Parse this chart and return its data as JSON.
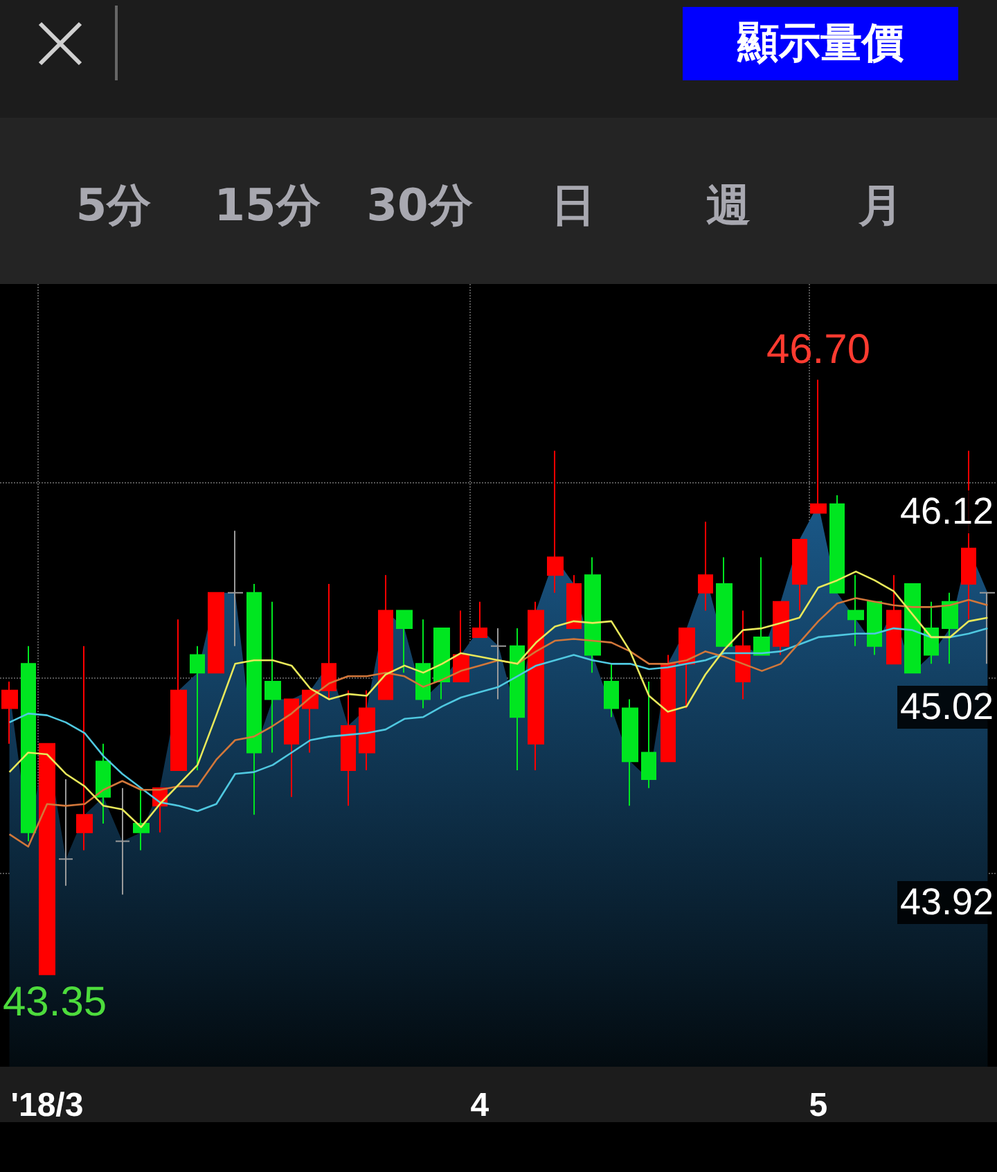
{
  "chart_data": {
    "type": "candlestick",
    "categories": [
      null,
      null,
      "'18/3",
      null,
      null,
      null,
      null,
      null,
      null,
      null,
      null,
      null,
      null,
      null,
      null,
      null,
      null,
      null,
      null,
      null,
      null,
      null,
      null,
      null,
      null,
      "4",
      null,
      null,
      null,
      null,
      null,
      null,
      null,
      null,
      null,
      null,
      null,
      null,
      null,
      null,
      null,
      null,
      null,
      "5",
      null,
      null,
      null,
      null,
      null,
      null,
      null,
      null,
      null
    ],
    "ohlc": [
      [
        44.85,
        45.0,
        44.65,
        44.95
      ],
      [
        45.1,
        45.2,
        44.1,
        44.15
      ],
      [
        43.35,
        44.65,
        43.35,
        44.65
      ],
      [
        44.0,
        44.45,
        43.85,
        44.0
      ],
      [
        44.15,
        45.2,
        44.05,
        44.25
      ],
      [
        44.55,
        44.65,
        44.2,
        44.35
      ],
      [
        44.1,
        44.4,
        43.8,
        44.1
      ],
      [
        44.2,
        44.4,
        44.05,
        44.15
      ],
      [
        44.3,
        44.4,
        44.15,
        44.4
      ],
      [
        44.5,
        45.35,
        44.5,
        44.95
      ],
      [
        45.15,
        45.2,
        44.5,
        45.05
      ],
      [
        45.05,
        45.5,
        45.05,
        45.5
      ],
      [
        45.5,
        45.85,
        45.2,
        45.5
      ],
      [
        45.5,
        45.55,
        44.25,
        44.6
      ],
      [
        45.0,
        45.45,
        44.6,
        44.9
      ],
      [
        44.65,
        44.9,
        44.35,
        44.9
      ],
      [
        44.85,
        44.95,
        44.6,
        44.95
      ],
      [
        44.95,
        45.55,
        44.9,
        45.1
      ],
      [
        44.5,
        44.95,
        44.3,
        44.75
      ],
      [
        44.6,
        44.95,
        44.5,
        44.85
      ],
      [
        44.9,
        45.6,
        44.9,
        45.4
      ],
      [
        45.4,
        45.4,
        45.05,
        45.3
      ],
      [
        45.1,
        45.35,
        44.85,
        44.9
      ],
      [
        45.3,
        45.3,
        44.9,
        45.0
      ],
      [
        45.0,
        45.4,
        45.0,
        45.15
      ],
      [
        45.25,
        45.45,
        45.25,
        45.3
      ],
      [
        45.2,
        45.3,
        44.9,
        45.2
      ],
      [
        45.2,
        45.3,
        44.5,
        44.8
      ],
      [
        44.65,
        45.45,
        44.5,
        45.4
      ],
      [
        45.6,
        46.3,
        45.5,
        45.7
      ],
      [
        45.3,
        45.6,
        45.3,
        45.55
      ],
      [
        45.6,
        45.7,
        45.05,
        45.15
      ],
      [
        45.0,
        45.1,
        44.8,
        44.85
      ],
      [
        44.85,
        44.9,
        44.3,
        44.55
      ],
      [
        44.6,
        45.0,
        44.4,
        44.45
      ],
      [
        44.55,
        45.15,
        44.55,
        45.1
      ],
      [
        45.1,
        45.3,
        44.85,
        45.3
      ],
      [
        45.5,
        45.9,
        45.4,
        45.6
      ],
      [
        45.55,
        45.7,
        45.2,
        45.2
      ],
      [
        45.0,
        45.4,
        44.9,
        45.2
      ],
      [
        45.25,
        45.7,
        45.15,
        45.15
      ],
      [
        45.2,
        45.45,
        45.15,
        45.45
      ],
      [
        45.55,
        45.8,
        45.4,
        45.8
      ],
      [
        45.95,
        46.7,
        45.95,
        46.0
      ],
      [
        46.0,
        46.05,
        45.5,
        45.5
      ],
      [
        45.4,
        45.6,
        45.2,
        45.35
      ],
      [
        45.45,
        45.45,
        45.15,
        45.2
      ],
      [
        45.1,
        45.6,
        45.1,
        45.4
      ],
      [
        45.55,
        45.55,
        45.05,
        45.05
      ],
      [
        45.3,
        45.45,
        45.1,
        45.15
      ],
      [
        45.45,
        45.5,
        45.1,
        45.3
      ],
      [
        45.55,
        46.3,
        45.35,
        45.75
      ],
      [
        45.5,
        45.5,
        45.1,
        45.5
      ]
    ],
    "colors": [
      "#ff0000",
      "#00e620",
      "#ff0000",
      "#9a9a9a",
      "#ff0000",
      "#00e620",
      "#9a9a9a",
      "#00e620",
      "#ff0000",
      "#ff0000",
      "#00e620",
      "#ff0000",
      "#9a9a9a",
      "#00e620",
      "#00e620",
      "#ff0000",
      "#ff0000",
      "#ff0000",
      "#ff0000",
      "#ff0000",
      "#ff0000",
      "#00e620",
      "#00e620",
      "#00e620",
      "#ff0000",
      "#ff0000",
      "#9a9a9a",
      "#00e620",
      "#ff0000",
      "#ff0000",
      "#ff0000",
      "#00e620",
      "#00e620",
      "#00e620",
      "#00e620",
      "#ff0000",
      "#ff0000",
      "#ff0000",
      "#00e620",
      "#ff0000",
      "#00e620",
      "#ff0000",
      "#ff0000",
      "#ff0000",
      "#00e620",
      "#00e620",
      "#00e620",
      "#ff0000",
      "#00e620",
      "#00e620",
      "#00e620",
      "#ff0000",
      "#9a9a9a"
    ],
    "series": [
      {
        "type": "area",
        "color": "#1a5888",
        "values": [
          44.95,
          44.15,
          44.65,
          44.0,
          44.25,
          44.35,
          44.1,
          44.15,
          44.4,
          44.95,
          45.05,
          45.5,
          45.5,
          44.6,
          44.9,
          44.9,
          44.95,
          45.1,
          44.75,
          44.85,
          45.4,
          45.3,
          44.9,
          45.0,
          45.15,
          45.3,
          45.2,
          44.8,
          45.4,
          45.7,
          45.55,
          45.15,
          44.85,
          44.55,
          44.45,
          45.1,
          45.3,
          45.6,
          45.2,
          45.2,
          45.15,
          45.45,
          45.8,
          46.0,
          45.5,
          45.35,
          45.2,
          45.4,
          45.05,
          45.15,
          45.3,
          45.75,
          45.5
        ]
      },
      {
        "type": "line",
        "color": "#4fc8e0",
        "values": [
          44.77,
          44.82,
          44.81,
          44.77,
          44.71,
          44.58,
          44.48,
          44.4,
          44.32,
          44.3,
          44.27,
          44.31,
          44.48,
          44.49,
          44.53,
          44.6,
          44.67,
          44.69,
          44.7,
          44.71,
          44.73,
          44.79,
          44.8,
          44.86,
          44.91,
          44.94,
          44.97,
          45.03,
          45.09,
          45.12,
          45.15,
          45.12,
          45.1,
          45.1,
          45.07,
          45.08,
          45.1,
          45.12,
          45.16,
          45.16,
          45.16,
          45.17,
          45.21,
          45.25,
          45.26,
          45.27,
          45.27,
          45.3,
          45.29,
          45.25,
          45.25,
          45.27,
          45.3
        ]
      },
      {
        "type": "line",
        "color": "#d2773a",
        "values": [
          44.14,
          44.07,
          44.31,
          44.3,
          44.31,
          44.39,
          44.44,
          44.39,
          44.39,
          44.41,
          44.41,
          44.56,
          44.67,
          44.69,
          44.75,
          44.82,
          44.91,
          44.99,
          45.03,
          45.03,
          45.05,
          45.03,
          44.97,
          45.01,
          45.06,
          45.09,
          45.12,
          45.1,
          45.17,
          45.23,
          45.24,
          45.23,
          45.22,
          45.17,
          45.1,
          45.1,
          45.12,
          45.17,
          45.14,
          45.1,
          45.06,
          45.1,
          45.22,
          45.34,
          45.44,
          45.47,
          45.45,
          45.43,
          45.42,
          45.42,
          45.43,
          45.46,
          45.43
        ]
      },
      {
        "type": "line",
        "color": "#e8e85a",
        "values": [
          44.49,
          44.6,
          44.59,
          44.48,
          44.41,
          44.3,
          44.28,
          44.18,
          44.31,
          44.42,
          44.53,
          44.81,
          45.1,
          45.12,
          45.12,
          45.09,
          44.96,
          44.9,
          44.93,
          44.92,
          45.04,
          45.09,
          45.05,
          45.1,
          45.16,
          45.14,
          45.12,
          45.1,
          45.22,
          45.31,
          45.34,
          45.33,
          45.34,
          45.17,
          44.92,
          44.83,
          44.86,
          45.04,
          45.18,
          45.29,
          45.3,
          45.33,
          45.36,
          45.53,
          45.57,
          45.62,
          45.57,
          45.51,
          45.38,
          45.25,
          45.25,
          45.34,
          45.36
        ]
      }
    ],
    "ylim": [
      42.83,
      47.24
    ],
    "yticks": [
      43.92,
      45.02,
      46.12
    ],
    "grid": true,
    "marker": "none",
    "annotations": [
      "顯示量價",
      "5分",
      "15分",
      "30分",
      "日",
      "週",
      "月",
      {
        "text": "46.70",
        "x": "5",
        "y": 46.7
      },
      {
        "text": "43.35",
        "x": "'18/3",
        "y": 43.35
      }
    ]
  }
}
